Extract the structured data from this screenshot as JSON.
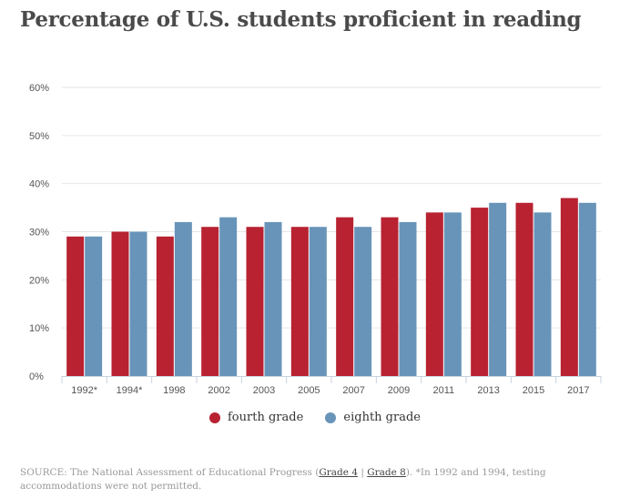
{
  "chart_data": {
    "type": "bar",
    "title": "Percentage of U.S. students proficient in reading",
    "categories": [
      "1992*",
      "1994*",
      "1998",
      "2002",
      "2003",
      "2005",
      "2007",
      "2009",
      "2011",
      "2013",
      "2015",
      "2017"
    ],
    "series": [
      {
        "name": "fourth grade",
        "color": "#b82231",
        "values": [
          29,
          30,
          29,
          31,
          31,
          31,
          33,
          33,
          34,
          35,
          36,
          37
        ]
      },
      {
        "name": "eighth grade",
        "color": "#6894b9",
        "values": [
          29,
          30,
          32,
          33,
          32,
          31,
          31,
          32,
          34,
          36,
          34,
          36
        ]
      }
    ],
    "yticks": [
      "0%",
      "10%",
      "20%",
      "30%",
      "40%",
      "50%",
      "60%"
    ],
    "ylim": [
      0,
      60
    ],
    "grid": true,
    "legend": "bottom"
  },
  "source": {
    "prefix": "SOURCE: The National Assessment of Educational Progress (",
    "link1": "Grade 4",
    "sep": " | ",
    "link2": "Grade 8",
    "suffix": "). *In 1992 and 1994, testing accommodations were not permitted."
  }
}
